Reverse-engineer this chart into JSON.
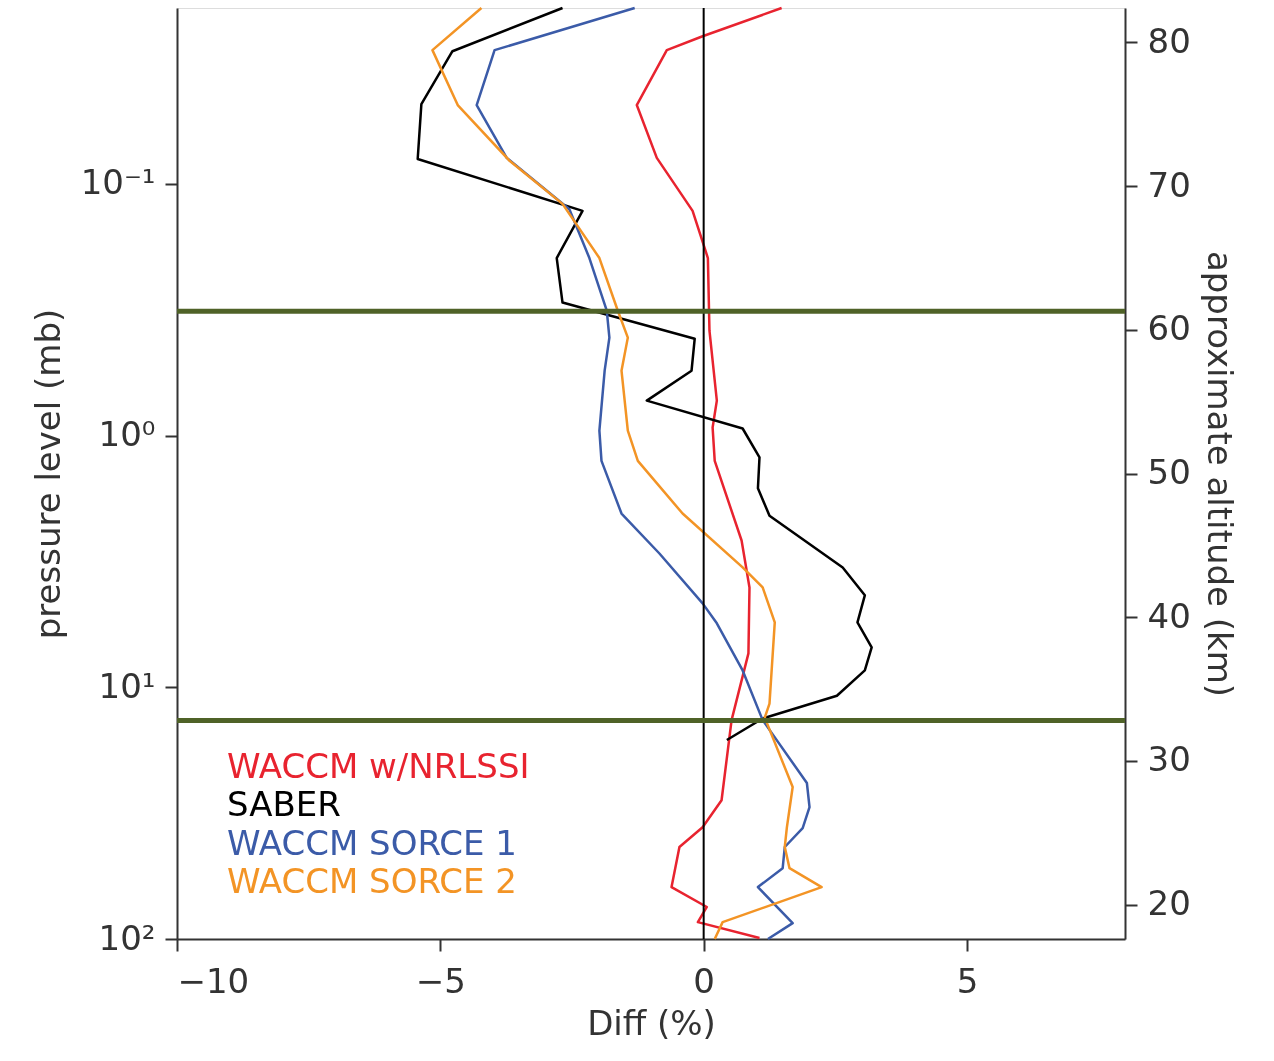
{
  "chart_data": {
    "type": "line",
    "xlabel": "Diff (%)",
    "ylabel": "pressure level (mb)",
    "y2label": "approximate altitude (km)",
    "xlim": [
      -10,
      8
    ],
    "xticks": [
      -10,
      -5,
      0,
      5
    ],
    "ylim": [
      100,
      0.02
    ],
    "yticks": [
      {
        "value": 0.1,
        "label": "10⁻¹"
      },
      {
        "value": 1,
        "label": "10⁰"
      },
      {
        "value": 10,
        "label": "10¹"
      },
      {
        "value": 100,
        "label": "10²"
      }
    ],
    "log": "y",
    "y2lim": [
      17.6,
      82.4
    ],
    "y2ticks": [
      20,
      30,
      40,
      50,
      60,
      70,
      80
    ],
    "grid": false,
    "legend": "bottom left",
    "line_style": "solid",
    "marker": "none",
    "series": [
      {
        "name": "WACCM w/NRLSSI",
        "color": "#e8232f",
        "x": [
          1.48,
          -0.02,
          -0.7,
          -1.27,
          -0.89,
          -0.21,
          0.08,
          0.11,
          0.25,
          0.17,
          0.21,
          0.72,
          0.87,
          0.85,
          0.53,
          0.34,
          -0.02,
          -0.46,
          -0.61,
          0.06,
          -0.11,
          1.06
        ],
        "values": [
          0.02,
          0.0259,
          0.0294,
          0.0486,
          0.0788,
          0.128,
          0.197,
          0.383,
          0.726,
          0.929,
          1.26,
          2.61,
          4.01,
          7.33,
          13.5,
          28.1,
          36.0,
          43.1,
          62.2,
          74.6,
          85.7,
          99.1
        ]
      },
      {
        "name": "SABER",
        "color": "#000000",
        "x": [
          -2.68,
          -4.77,
          -5.36,
          -5.43,
          -2.3,
          -2.79,
          -2.68,
          -0.17,
          -0.23,
          -1.08,
          0.74,
          1.06,
          1.03,
          1.25,
          2.64,
          3.06,
          2.92,
          3.19,
          3.06,
          2.53,
          1.12,
          0.44
        ],
        "values": [
          0.02,
          0.0297,
          0.0482,
          0.0796,
          0.128,
          0.197,
          0.296,
          0.412,
          0.552,
          0.726,
          0.937,
          1.22,
          1.62,
          2.08,
          3.34,
          4.31,
          5.52,
          6.94,
          8.57,
          10.8,
          13.3,
          16.2
        ]
      },
      {
        "name": "WACCM SORCE 1",
        "color": "#3b5ba8",
        "x": [
          -1.31,
          -3.97,
          -4.31,
          -3.74,
          -2.55,
          -2.17,
          -1.84,
          -1.79,
          -1.88,
          -1.98,
          -1.94,
          -1.56,
          -0.84,
          -0.02,
          0.25,
          0.74,
          1.12,
          1.96,
          2.01,
          1.88,
          1.54,
          1.5,
          1.03,
          1.69,
          1.22
        ],
        "values": [
          0.02,
          0.0294,
          0.0486,
          0.0788,
          0.126,
          0.197,
          0.319,
          0.408,
          0.552,
          0.955,
          1.26,
          2.04,
          2.94,
          4.64,
          5.57,
          8.57,
          13.5,
          24.0,
          29.9,
          36.3,
          43.1,
          52.3,
          62.2,
          86.5,
          100
        ]
      },
      {
        "name": "WACCM SORCE 2",
        "color": "#f39425",
        "x": [
          -4.22,
          -5.15,
          -4.67,
          -3.68,
          -2.68,
          -1.98,
          -1.63,
          -1.44,
          -1.56,
          -1.44,
          -1.25,
          -0.4,
          0.74,
          1.12,
          1.35,
          1.25,
          1.16,
          1.69,
          1.58,
          1.54,
          1.63,
          2.24,
          0.36,
          0.21
        ],
        "values": [
          0.02,
          0.0294,
          0.0486,
          0.0811,
          0.12,
          0.197,
          0.319,
          0.408,
          0.552,
          0.955,
          1.26,
          2.04,
          3.34,
          4.01,
          5.52,
          11.6,
          13.2,
          24.9,
          36.0,
          43.1,
          52.3,
          62.2,
          85.7,
          100
        ]
      }
    ],
    "ref_lines": [
      {
        "axis": "x",
        "value": 0,
        "color": "#000000"
      },
      {
        "axis": "y2",
        "value": 61.3,
        "color": "#4f6228"
      },
      {
        "axis": "y2",
        "value": 32.8,
        "color": "#4f6228"
      }
    ]
  }
}
